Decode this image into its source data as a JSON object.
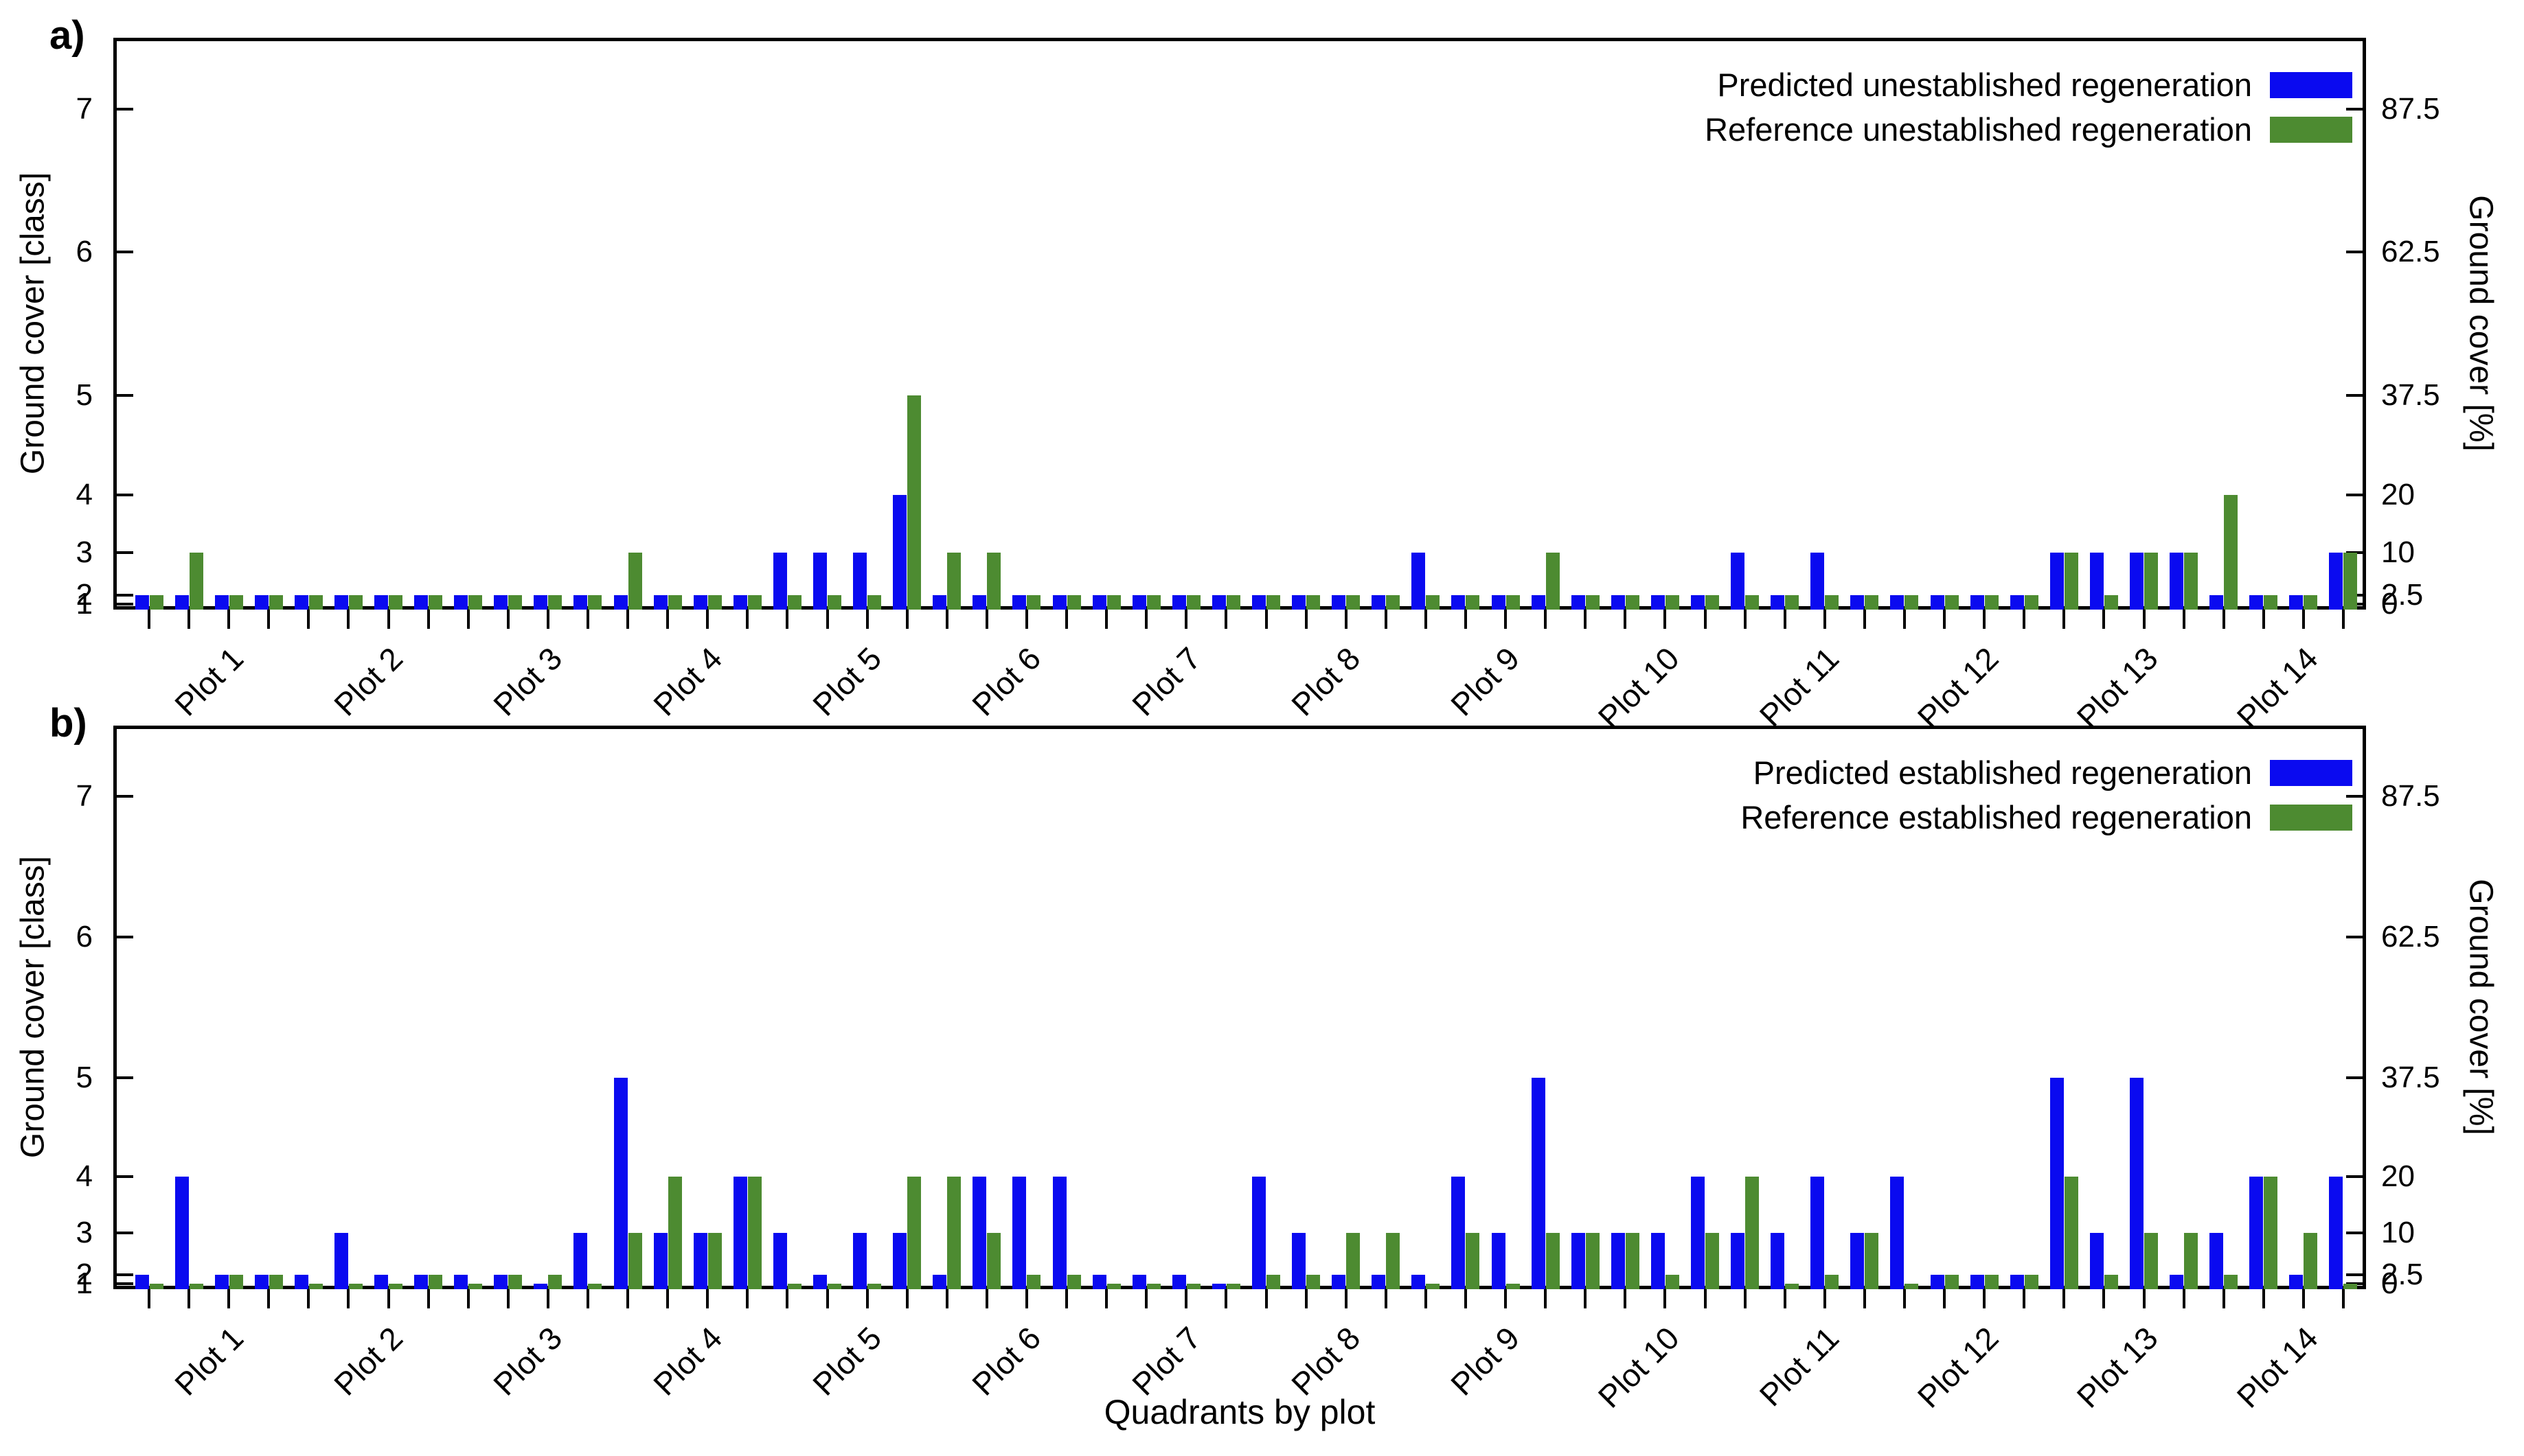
{
  "figure": {
    "x_axis_label": "Quadrants by plot",
    "y_left_label": "Ground cover [class]",
    "y_right_label": "Ground cover [%]",
    "colors": {
      "predicted_blue": "#0a0af0",
      "reference_green": "#4d8b31"
    },
    "plots": [
      "Plot 1",
      "Plot 2",
      "Plot 3",
      "Plot 4",
      "Plot 5",
      "Plot 6",
      "Plot 7",
      "Plot 8",
      "Plot 9",
      "Plot 10",
      "Plot 11",
      "Plot 12",
      "Plot 13",
      "Plot 14"
    ],
    "quadrants_per_plot": 4,
    "left_axis_ticks": [
      "7",
      "6",
      "5",
      "4",
      "3",
      "2",
      "1"
    ],
    "right_axis_ticks": [
      "87.5",
      "62.5",
      "37.5",
      "20",
      "10",
      "2.5",
      "0"
    ],
    "class_percent_map": {
      "1": 1.0,
      "2": 2.5,
      "3": 10,
      "4": 20,
      "5": 37.5,
      "6": 62.5,
      "7": 87.5
    }
  },
  "chart_data": [
    {
      "panel": "a)",
      "type": "bar",
      "xlabel": "Quadrants by plot",
      "ylabel_left": "Ground cover [class]",
      "ylabel_right": "Ground cover [%]",
      "ylim_percent": [
        0,
        100
      ],
      "grid": false,
      "legend_position": "top-right",
      "legend": [
        {
          "label": "Predicted unestablished regeneration",
          "series": "predicted"
        },
        {
          "label": "Reference unestablished regeneration",
          "series": "reference"
        }
      ],
      "categories_note": "56 bars per series = 14 plots x 4 quadrants; values are ground-cover classes (1-7), drawn at percent midpoints per class_percent_map",
      "series": [
        {
          "name": "Predicted unestablished regeneration",
          "color_key": "predicted_blue",
          "classes": [
            2,
            2,
            2,
            2,
            2,
            2,
            2,
            2,
            2,
            2,
            2,
            2,
            2,
            2,
            2,
            2,
            3,
            3,
            3,
            4,
            2,
            2,
            2,
            2,
            2,
            2,
            2,
            2,
            2,
            2,
            2,
            2,
            3,
            2,
            2,
            2,
            2,
            2,
            2,
            2,
            3,
            2,
            3,
            2,
            2,
            2,
            2,
            2,
            3,
            3,
            3,
            3,
            2,
            2,
            2,
            3
          ]
        },
        {
          "name": "Reference unestablished regeneration",
          "color_key": "reference_green",
          "classes": [
            2,
            3,
            2,
            2,
            2,
            2,
            2,
            2,
            2,
            2,
            2,
            2,
            3,
            2,
            2,
            2,
            2,
            2,
            2,
            5,
            3,
            3,
            2,
            2,
            2,
            2,
            2,
            2,
            2,
            2,
            2,
            2,
            2,
            2,
            2,
            3,
            2,
            2,
            2,
            2,
            2,
            2,
            2,
            2,
            2,
            2,
            2,
            2,
            3,
            2,
            3,
            3,
            4,
            2,
            2,
            3
          ]
        }
      ]
    },
    {
      "panel": "b)",
      "type": "bar",
      "xlabel": "Quadrants by plot",
      "ylabel_left": "Ground cover [class]",
      "ylabel_right": "Ground cover [%]",
      "ylim_percent": [
        0,
        100
      ],
      "grid": false,
      "legend_position": "top-right",
      "legend": [
        {
          "label": "Predicted established regeneration",
          "series": "predicted"
        },
        {
          "label": "Reference established regeneration",
          "series": "reference"
        }
      ],
      "categories_note": "56 bars per series = 14 plots x 4 quadrants; values are ground-cover classes (1-7), drawn at percent midpoints per class_percent_map",
      "series": [
        {
          "name": "Predicted established regeneration",
          "color_key": "predicted_blue",
          "classes": [
            2,
            4,
            2,
            2,
            2,
            3,
            2,
            2,
            2,
            2,
            1,
            3,
            5,
            3,
            3,
            4,
            3,
            2,
            3,
            3,
            2,
            4,
            4,
            4,
            2,
            2,
            2,
            1,
            4,
            3,
            2,
            2,
            2,
            4,
            3,
            5,
            3,
            3,
            3,
            4,
            3,
            3,
            4,
            3,
            4,
            2,
            2,
            2,
            5,
            3,
            5,
            2,
            3,
            4,
            2,
            4
          ]
        },
        {
          "name": "Reference established regeneration",
          "color_key": "reference_green",
          "classes": [
            1,
            1,
            2,
            2,
            1,
            1,
            1,
            2,
            1,
            2,
            2,
            1,
            3,
            4,
            3,
            4,
            1,
            1,
            1,
            4,
            4,
            3,
            2,
            2,
            1,
            1,
            1,
            1,
            2,
            2,
            3,
            3,
            1,
            3,
            1,
            3,
            3,
            3,
            2,
            3,
            4,
            1,
            2,
            3,
            1,
            2,
            2,
            2,
            4,
            2,
            3,
            3,
            2,
            4,
            3,
            1
          ]
        }
      ]
    }
  ]
}
